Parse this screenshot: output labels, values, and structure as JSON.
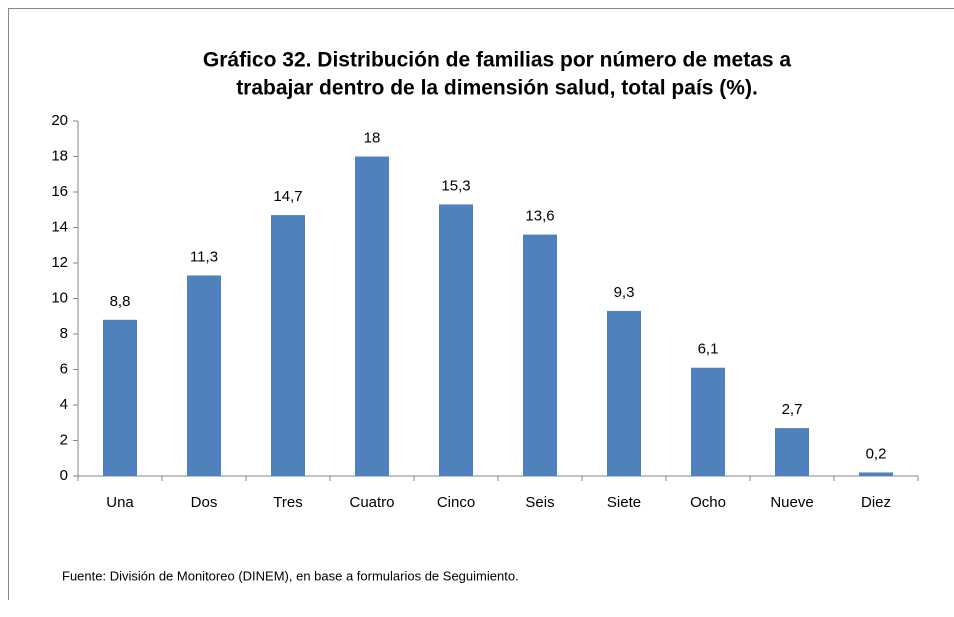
{
  "chart_data": {
    "type": "bar",
    "title": [
      "Gráfico 32. Distribución de familias por número de metas a",
      "trabajar dentro de la dimensión salud, total país (%)."
    ],
    "categories": [
      "Una",
      "Dos",
      "Tres",
      "Cuatro",
      "Cinco",
      "Seis",
      "Siete",
      "Ocho",
      "Nueve",
      "Diez"
    ],
    "values": [
      8.8,
      11.3,
      14.7,
      18,
      15.3,
      13.6,
      9.3,
      6.1,
      2.7,
      0.2
    ],
    "value_labels": [
      "8,8",
      "11,3",
      "14,7",
      "18",
      "15,3",
      "13,6",
      "9,3",
      "6,1",
      "2,7",
      "0,2"
    ],
    "color": "#4f81bd",
    "ylim": [
      0,
      20
    ],
    "yticks": [
      0,
      2,
      4,
      6,
      8,
      10,
      12,
      14,
      16,
      18,
      20
    ],
    "grid": false,
    "source": "Fuente: División de Monitoreo (DINEM), en base a formularios de Seguimiento."
  }
}
